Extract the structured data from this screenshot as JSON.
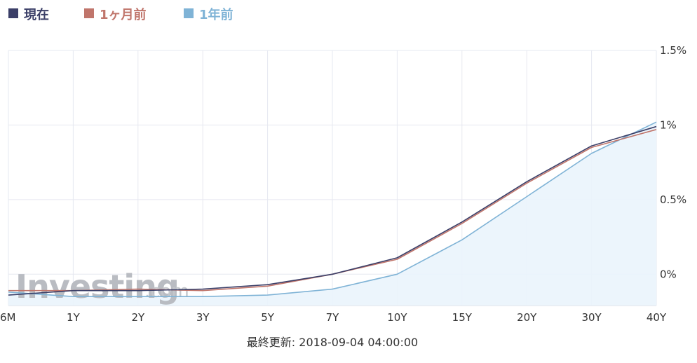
{
  "legend": [
    {
      "label": "現在",
      "color": "#3b3f68"
    },
    {
      "label": "1ヶ月前",
      "color": "#c0756b"
    },
    {
      "label": "1年前",
      "color": "#7fb3d6"
    }
  ],
  "watermark": {
    "main": "Investing",
    "suffix": ".com"
  },
  "footer": "最終更新: 2018-09-04 04:00:00",
  "chart_data": {
    "type": "line",
    "categories": [
      "6M",
      "1Y",
      "2Y",
      "3Y",
      "5Y",
      "7Y",
      "10Y",
      "15Y",
      "20Y",
      "30Y",
      "40Y"
    ],
    "y_ticks": [
      "1.5%",
      "1%",
      "0.5%",
      "0%"
    ],
    "y_tick_values": [
      1.5,
      1.0,
      0.5,
      0.0
    ],
    "ylim": [
      -0.21,
      1.5
    ],
    "y_axis_position": "right",
    "grid": true,
    "legend_position": "top-left",
    "series": [
      {
        "name": "現在",
        "color": "#3b3f68",
        "values": [
          -0.14,
          -0.11,
          -0.11,
          -0.1,
          -0.07,
          0.0,
          0.11,
          0.35,
          0.62,
          0.86,
          0.99
        ]
      },
      {
        "name": "1ヶ月前",
        "color": "#c0756b",
        "values": [
          -0.11,
          -0.11,
          -0.1,
          -0.11,
          -0.08,
          0.0,
          0.1,
          0.34,
          0.61,
          0.85,
          0.97
        ]
      },
      {
        "name": "1年前",
        "color": "#7fb3d6",
        "filled": true,
        "values": [
          -0.12,
          -0.15,
          -0.15,
          -0.15,
          -0.14,
          -0.1,
          0.0,
          0.23,
          0.52,
          0.81,
          1.02
        ]
      }
    ]
  }
}
